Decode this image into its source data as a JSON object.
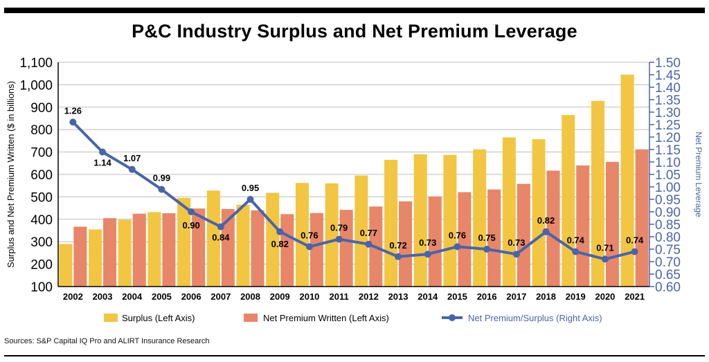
{
  "title": "P&C Industry Surplus and Net Premium Leverage",
  "source": "Sources: S&P Capital IQ Pro and ALIRT Insurance Research",
  "colors": {
    "surplus": "#f2c642",
    "npw": "#e8866a",
    "leverage": "#4a64a8"
  },
  "chart_data": {
    "type": "bar+line",
    "categories": [
      "2002",
      "2003",
      "2004",
      "2005",
      "2006",
      "2007",
      "2008",
      "2009",
      "2010",
      "2011",
      "2012",
      "2013",
      "2014",
      "2015",
      "2016",
      "2017",
      "2018",
      "2019",
      "2020",
      "2021"
    ],
    "ylabel_left": "Surplus and Net Premium Written ($ in billions)",
    "ylabel_right": "Net Premium Leverage",
    "ylim_left": [
      100,
      1100
    ],
    "yticks_left": [
      "100",
      "200",
      "300",
      "400",
      "500",
      "600",
      "700",
      "800",
      "900",
      "1,000",
      "1,100"
    ],
    "ylim_right": [
      0.6,
      1.5
    ],
    "yticks_right": [
      "0.60",
      "0.65",
      "0.70",
      "0.75",
      "0.80",
      "0.85",
      "0.90",
      "0.95",
      "1.00",
      "1.05",
      "1.10",
      "1.15",
      "1.20",
      "1.25",
      "1.30",
      "1.35",
      "1.40",
      "1.45",
      "1.50"
    ],
    "series": [
      {
        "name": "Surplus (Left Axis)",
        "type": "bar",
        "axis": "left",
        "values": [
          290,
          355,
          398,
          432,
          495,
          528,
          465,
          518,
          562,
          560,
          595,
          665,
          690,
          687,
          712,
          765,
          757,
          865,
          928,
          1045
        ]
      },
      {
        "name": "Net Premium Written (Left Axis)",
        "type": "bar",
        "axis": "left",
        "values": [
          367,
          405,
          425,
          427,
          448,
          446,
          440,
          423,
          428,
          442,
          457,
          480,
          502,
          521,
          533,
          558,
          617,
          640,
          656,
          712
        ]
      },
      {
        "name": "Net Premium/Surplus (Right Axis)",
        "type": "line",
        "axis": "right",
        "values": [
          1.26,
          1.14,
          1.07,
          0.99,
          0.9,
          0.84,
          0.95,
          0.82,
          0.76,
          0.79,
          0.77,
          0.72,
          0.73,
          0.76,
          0.75,
          0.73,
          0.82,
          0.74,
          0.71,
          0.74
        ],
        "labels": [
          "1.26",
          "1.14",
          "1.07",
          "0.99",
          "0.90",
          "0.84",
          "0.95",
          "0.82",
          "0.76",
          "0.79",
          "0.77",
          "0.72",
          "0.73",
          "0.76",
          "0.75",
          "0.73",
          "0.82",
          "0.74",
          "0.71",
          "0.74"
        ]
      }
    ],
    "grid": true,
    "legend_position": "bottom"
  }
}
